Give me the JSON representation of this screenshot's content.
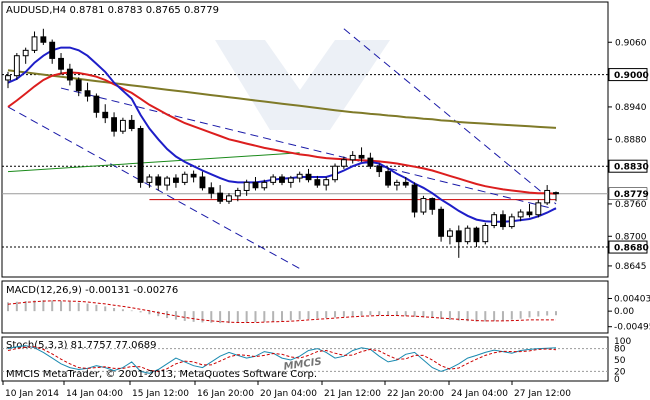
{
  "colors": {
    "bull": "#000000",
    "bear": "#000000",
    "ma_fast": "#1e1ec8",
    "ma_mid": "#dc1e1e",
    "ma_slow": "#7f7a28",
    "trend_green": "#1a8a1a",
    "channel": "#1a1aa8",
    "support": "#cc0000",
    "macd_hist": "#b4b4b4",
    "macd_signal": "#cc0000",
    "stoch_main": "#1a8ab0",
    "stoch_signal": "#cc0000",
    "watermark": "#c9d4e4"
  },
  "chart_data": [
    {
      "type": "candlestick",
      "title": "AUDUSD,H4  0.8781 0.8783 0.8765 0.8779",
      "ylim": [
        0.863,
        0.9105
      ],
      "yticks": [
        "0.9060",
        "0.8940",
        "0.8880",
        "0.8760",
        "0.8700",
        "0.8645"
      ],
      "level_labels": [
        {
          "value": 0.9,
          "label": "0.9000"
        },
        {
          "value": 0.883,
          "label": "0.8830"
        },
        {
          "value": 0.8779,
          "label": "0.8779"
        },
        {
          "value": 0.868,
          "label": "0.8680"
        }
      ],
      "xlabels": [
        "10 Jan 2014",
        "14 Jan 04:00",
        "15 Jan 12:00",
        "16 Jan 20:00",
        "20 Jan 04:00",
        "21 Jan 12:00",
        "22 Jan 20:00",
        "24 Jan 04:00",
        "27 Jan 12:00"
      ],
      "candles": [
        {
          "o": 0.899,
          "h": 0.9005,
          "l": 0.8975,
          "c": 0.8998
        },
        {
          "o": 0.8998,
          "h": 0.904,
          "l": 0.899,
          "c": 0.9035
        },
        {
          "o": 0.9035,
          "h": 0.905,
          "l": 0.902,
          "c": 0.9045
        },
        {
          "o": 0.9045,
          "h": 0.908,
          "l": 0.904,
          "c": 0.907
        },
        {
          "o": 0.907,
          "h": 0.9085,
          "l": 0.9055,
          "c": 0.906
        },
        {
          "o": 0.906,
          "h": 0.9065,
          "l": 0.902,
          "c": 0.903
        },
        {
          "o": 0.903,
          "h": 0.904,
          "l": 0.9,
          "c": 0.901
        },
        {
          "o": 0.901,
          "h": 0.902,
          "l": 0.898,
          "c": 0.899
        },
        {
          "o": 0.899,
          "h": 0.8995,
          "l": 0.896,
          "c": 0.897
        },
        {
          "o": 0.897,
          "h": 0.8985,
          "l": 0.895,
          "c": 0.896
        },
        {
          "o": 0.896,
          "h": 0.8965,
          "l": 0.892,
          "c": 0.893
        },
        {
          "o": 0.893,
          "h": 0.8945,
          "l": 0.891,
          "c": 0.892
        },
        {
          "o": 0.892,
          "h": 0.893,
          "l": 0.8885,
          "c": 0.8895
        },
        {
          "o": 0.8895,
          "h": 0.892,
          "l": 0.889,
          "c": 0.8915
        },
        {
          "o": 0.8915,
          "h": 0.8925,
          "l": 0.8895,
          "c": 0.89
        },
        {
          "o": 0.89,
          "h": 0.8905,
          "l": 0.879,
          "c": 0.88
        },
        {
          "o": 0.88,
          "h": 0.8815,
          "l": 0.879,
          "c": 0.881
        },
        {
          "o": 0.881,
          "h": 0.8815,
          "l": 0.8785,
          "c": 0.8795
        },
        {
          "o": 0.8795,
          "h": 0.8812,
          "l": 0.8785,
          "c": 0.8808
        },
        {
          "o": 0.8808,
          "h": 0.8815,
          "l": 0.879,
          "c": 0.88
        },
        {
          "o": 0.88,
          "h": 0.882,
          "l": 0.8795,
          "c": 0.8815
        },
        {
          "o": 0.8815,
          "h": 0.8822,
          "l": 0.88,
          "c": 0.881
        },
        {
          "o": 0.881,
          "h": 0.882,
          "l": 0.8785,
          "c": 0.879
        },
        {
          "o": 0.879,
          "h": 0.88,
          "l": 0.877,
          "c": 0.878
        },
        {
          "o": 0.878,
          "h": 0.8795,
          "l": 0.876,
          "c": 0.8765
        },
        {
          "o": 0.8765,
          "h": 0.878,
          "l": 0.876,
          "c": 0.8775
        },
        {
          "o": 0.8775,
          "h": 0.879,
          "l": 0.8765,
          "c": 0.8785
        },
        {
          "o": 0.8785,
          "h": 0.8805,
          "l": 0.8775,
          "c": 0.88
        },
        {
          "o": 0.88,
          "h": 0.881,
          "l": 0.8785,
          "c": 0.879
        },
        {
          "o": 0.879,
          "h": 0.8805,
          "l": 0.8785,
          "c": 0.88
        },
        {
          "o": 0.88,
          "h": 0.8815,
          "l": 0.8795,
          "c": 0.881
        },
        {
          "o": 0.881,
          "h": 0.8815,
          "l": 0.8795,
          "c": 0.88
        },
        {
          "o": 0.88,
          "h": 0.8812,
          "l": 0.879,
          "c": 0.8808
        },
        {
          "o": 0.8808,
          "h": 0.882,
          "l": 0.88,
          "c": 0.8815
        },
        {
          "o": 0.8815,
          "h": 0.8825,
          "l": 0.88,
          "c": 0.8805
        },
        {
          "o": 0.8805,
          "h": 0.8812,
          "l": 0.879,
          "c": 0.8795
        },
        {
          "o": 0.8795,
          "h": 0.881,
          "l": 0.8785,
          "c": 0.8805
        },
        {
          "o": 0.8805,
          "h": 0.8835,
          "l": 0.88,
          "c": 0.883
        },
        {
          "o": 0.883,
          "h": 0.8848,
          "l": 0.8825,
          "c": 0.8842
        },
        {
          "o": 0.8842,
          "h": 0.8858,
          "l": 0.8835,
          "c": 0.885
        },
        {
          "o": 0.885,
          "h": 0.8865,
          "l": 0.8838,
          "c": 0.8845
        },
        {
          "o": 0.8845,
          "h": 0.8855,
          "l": 0.8825,
          "c": 0.883
        },
        {
          "o": 0.883,
          "h": 0.8835,
          "l": 0.881,
          "c": 0.882
        },
        {
          "o": 0.882,
          "h": 0.8828,
          "l": 0.879,
          "c": 0.8795
        },
        {
          "o": 0.8795,
          "h": 0.8805,
          "l": 0.8785,
          "c": 0.88
        },
        {
          "o": 0.88,
          "h": 0.881,
          "l": 0.879,
          "c": 0.8795
        },
        {
          "o": 0.8795,
          "h": 0.88,
          "l": 0.8735,
          "c": 0.8745
        },
        {
          "o": 0.8745,
          "h": 0.8775,
          "l": 0.874,
          "c": 0.877
        },
        {
          "o": 0.877,
          "h": 0.8772,
          "l": 0.874,
          "c": 0.875
        },
        {
          "o": 0.875,
          "h": 0.8755,
          "l": 0.869,
          "c": 0.87
        },
        {
          "o": 0.87,
          "h": 0.8715,
          "l": 0.8685,
          "c": 0.871
        },
        {
          "o": 0.871,
          "h": 0.872,
          "l": 0.866,
          "c": 0.869
        },
        {
          "o": 0.869,
          "h": 0.872,
          "l": 0.8685,
          "c": 0.8715
        },
        {
          "o": 0.8715,
          "h": 0.8718,
          "l": 0.868,
          "c": 0.869
        },
        {
          "o": 0.869,
          "h": 0.8725,
          "l": 0.8685,
          "c": 0.872
        },
        {
          "o": 0.872,
          "h": 0.8745,
          "l": 0.8715,
          "c": 0.874
        },
        {
          "o": 0.874,
          "h": 0.8748,
          "l": 0.8712,
          "c": 0.8718
        },
        {
          "o": 0.8718,
          "h": 0.8742,
          "l": 0.8714,
          "c": 0.8736
        },
        {
          "o": 0.8736,
          "h": 0.875,
          "l": 0.8728,
          "c": 0.8745
        },
        {
          "o": 0.8745,
          "h": 0.876,
          "l": 0.8735,
          "c": 0.874
        },
        {
          "o": 0.874,
          "h": 0.8768,
          "l": 0.8735,
          "c": 0.8762
        },
        {
          "o": 0.8762,
          "h": 0.8795,
          "l": 0.8758,
          "c": 0.8785
        },
        {
          "o": 0.8781,
          "h": 0.8783,
          "l": 0.8765,
          "c": 0.8779
        }
      ],
      "ma_fast": [
        0.8985,
        0.8992,
        0.9005,
        0.9022,
        0.9035,
        0.9045,
        0.905,
        0.905,
        0.9045,
        0.9035,
        0.902,
        0.9005,
        0.8985,
        0.897,
        0.8955,
        0.8925,
        0.89,
        0.888,
        0.8862,
        0.8848,
        0.8838,
        0.883,
        0.8822,
        0.8815,
        0.8808,
        0.8802,
        0.88,
        0.88,
        0.88,
        0.8802,
        0.8805,
        0.8807,
        0.8808,
        0.881,
        0.881,
        0.881,
        0.881,
        0.8815,
        0.8822,
        0.883,
        0.8836,
        0.8838,
        0.8835,
        0.8826,
        0.8816,
        0.8808,
        0.8798,
        0.879,
        0.878,
        0.8768,
        0.8758,
        0.8747,
        0.8738,
        0.8731,
        0.8728,
        0.8727,
        0.8727,
        0.8728,
        0.873,
        0.8732,
        0.8737,
        0.8744,
        0.8752
      ],
      "ma_mid": [
        0.894,
        0.8952,
        0.8965,
        0.8978,
        0.899,
        0.8998,
        0.9002,
        0.9004,
        0.9003,
        0.9,
        0.8996,
        0.899,
        0.8982,
        0.8974,
        0.8966,
        0.8955,
        0.8944,
        0.8935,
        0.8926,
        0.8918,
        0.891,
        0.8904,
        0.8898,
        0.8892,
        0.8886,
        0.888,
        0.8876,
        0.8872,
        0.8868,
        0.8864,
        0.8861,
        0.8858,
        0.8855,
        0.8852,
        0.885,
        0.8847,
        0.8845,
        0.8844,
        0.8843,
        0.8842,
        0.8841,
        0.884,
        0.8839,
        0.8837,
        0.8835,
        0.8832,
        0.8829,
        0.8826,
        0.8822,
        0.8817,
        0.8812,
        0.8807,
        0.8802,
        0.8797,
        0.8793,
        0.879,
        0.8787,
        0.8785,
        0.8783,
        0.8781,
        0.878,
        0.878,
        0.8779
      ],
      "ma_slow": [
        0.9008,
        0.9006,
        0.9004,
        0.9002,
        0.9,
        0.8998,
        0.8996,
        0.8994,
        0.8992,
        0.899,
        0.8988,
        0.8986,
        0.8984,
        0.8982,
        0.898,
        0.8978,
        0.8976,
        0.8974,
        0.8972,
        0.897,
        0.8968,
        0.8966,
        0.8964,
        0.8962,
        0.896,
        0.8958,
        0.8956,
        0.8954,
        0.8952,
        0.895,
        0.8948,
        0.8946,
        0.8944,
        0.8942,
        0.894,
        0.8938,
        0.8936,
        0.8934,
        0.8932,
        0.893,
        0.8929,
        0.8927,
        0.8926,
        0.8924,
        0.8923,
        0.8921,
        0.892,
        0.8918,
        0.8917,
        0.8915,
        0.8914,
        0.8912,
        0.8911,
        0.891,
        0.8909,
        0.8908,
        0.8907,
        0.8906,
        0.8905,
        0.8904,
        0.8903,
        0.8902,
        0.8901
      ],
      "lines": [
        {
          "name": "channel-upper",
          "x1": 38,
          "y1": 0.9085,
          "x2": 62,
          "y2": 0.876,
          "style": "dash"
        },
        {
          "name": "channel-lower",
          "x1": 0,
          "y1": 0.894,
          "x2": 33,
          "y2": 0.864,
          "style": "dash"
        },
        {
          "name": "diagonal",
          "x1": 6,
          "y1": 0.8975,
          "x2": 62,
          "y2": 0.875,
          "style": "dash"
        },
        {
          "name": "green-trend",
          "x1": 0,
          "y1": 0.882,
          "x2": 33,
          "y2": 0.8855,
          "style": "solid"
        },
        {
          "name": "support",
          "x1": 16,
          "y1": 0.8768,
          "x2": 62,
          "y2": 0.8768,
          "style": "solid"
        }
      ],
      "hlines": [
        0.9,
        0.883,
        0.868
      ],
      "bidline": 0.8779
    },
    {
      "type": "bar",
      "title": "MACD(12,26,9) -0.00131 -0.00276",
      "ylim": [
        -0.006,
        0.0045
      ],
      "yticks": [
        "0.00403",
        "0.00",
        "-0.00495"
      ],
      "hist": [
        0.0028,
        0.003,
        0.0032,
        0.0034,
        0.0035,
        0.0034,
        0.0032,
        0.003,
        0.0027,
        0.0024,
        0.002,
        0.0015,
        0.001,
        0.0006,
        0.0002,
        -0.0004,
        -0.001,
        -0.0016,
        -0.0022,
        -0.0027,
        -0.0031,
        -0.0034,
        -0.0036,
        -0.0037,
        -0.0038,
        -0.0038,
        -0.0037,
        -0.0036,
        -0.0035,
        -0.0034,
        -0.0033,
        -0.0031,
        -0.0029,
        -0.0027,
        -0.0025,
        -0.0023,
        -0.0022,
        -0.002,
        -0.0018,
        -0.0016,
        -0.0014,
        -0.0013,
        -0.0013,
        -0.0014,
        -0.0015,
        -0.0016,
        -0.0018,
        -0.002,
        -0.0022,
        -0.0025,
        -0.0028,
        -0.003,
        -0.0032,
        -0.0033,
        -0.0033,
        -0.0032,
        -0.003,
        -0.0027,
        -0.0024,
        -0.002,
        -0.0017,
        -0.0014,
        -0.0013
      ],
      "signal": [
        0.0022,
        0.0025,
        0.0028,
        0.003,
        0.0032,
        0.0033,
        0.0033,
        0.0032,
        0.0031,
        0.0029,
        0.0026,
        0.0023,
        0.0019,
        0.0015,
        0.0011,
        0.0006,
        0.0001,
        -0.0005,
        -0.001,
        -0.0015,
        -0.002,
        -0.0024,
        -0.0028,
        -0.0031,
        -0.0033,
        -0.0035,
        -0.0036,
        -0.0036,
        -0.0036,
        -0.0035,
        -0.0034,
        -0.0033,
        -0.0032,
        -0.003,
        -0.0028,
        -0.0026,
        -0.0024,
        -0.0022,
        -0.002,
        -0.0018,
        -0.0016,
        -0.0015,
        -0.0014,
        -0.0014,
        -0.0014,
        -0.0015,
        -0.0016,
        -0.0018,
        -0.002,
        -0.0022,
        -0.0024,
        -0.0026,
        -0.0028,
        -0.003,
        -0.0031,
        -0.0031,
        -0.0031,
        -0.003,
        -0.0029,
        -0.0028,
        -0.0028,
        -0.0028,
        -0.0028
      ]
    },
    {
      "type": "line",
      "title": "Stoch(5,3,3) 81.7757 77.0689",
      "ylim": [
        0,
        100
      ],
      "yticks": [
        "100",
        "80",
        "50",
        "20",
        "0"
      ],
      "main": [
        80,
        85,
        88,
        82,
        70,
        55,
        40,
        30,
        25,
        28,
        35,
        30,
        22,
        30,
        45,
        20,
        15,
        25,
        40,
        55,
        45,
        35,
        30,
        45,
        60,
        70,
        62,
        55,
        60,
        72,
        68,
        55,
        50,
        60,
        75,
        80,
        70,
        55,
        60,
        75,
        82,
        78,
        60,
        45,
        50,
        65,
        70,
        50,
        30,
        20,
        28,
        40,
        55,
        62,
        70,
        76,
        72,
        68,
        75,
        78,
        80,
        81,
        82
      ],
      "signal": [
        75,
        80,
        84,
        85,
        78,
        66,
        52,
        40,
        30,
        28,
        30,
        32,
        28,
        28,
        33,
        32,
        23,
        20,
        27,
        40,
        47,
        45,
        37,
        37,
        47,
        58,
        64,
        62,
        59,
        62,
        67,
        65,
        58,
        55,
        62,
        72,
        75,
        68,
        62,
        63,
        72,
        78,
        74,
        62,
        52,
        53,
        62,
        62,
        50,
        35,
        26,
        29,
        41,
        52,
        62,
        69,
        73,
        72,
        72,
        74,
        78,
        79,
        77
      ]
    }
  ],
  "footer": {
    "text": "MMCIS MetaTrader, © 2001-2013, MetaQuotes Software Corp."
  },
  "watermark": {
    "text": "MMCIS"
  }
}
